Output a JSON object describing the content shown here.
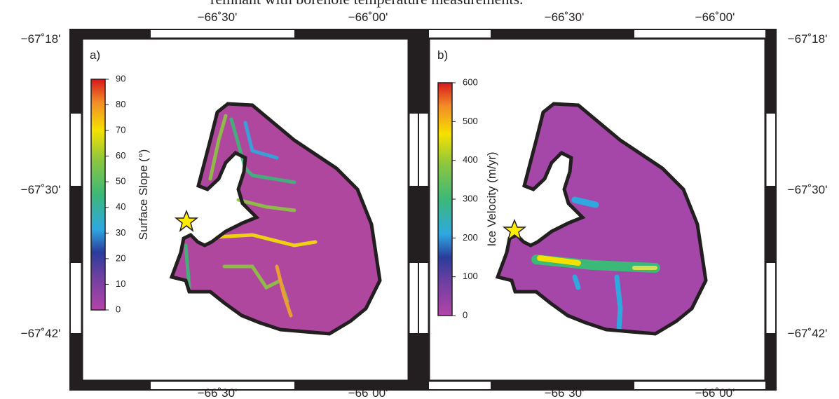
{
  "header_text": "remnant with borehole temperature measurements.",
  "panels": [
    {
      "label": "a)",
      "top_labels": [
        "−66˚30'",
        "−66˚00'"
      ],
      "bottom_labels": [
        "−66˚30'",
        "−66˚00'"
      ],
      "side_labels": [
        "−67˚18'",
        "−67˚30'",
        "−67˚42'"
      ],
      "colorbar": {
        "title": "Surface Slope (°)",
        "ticks": [
          0,
          10,
          20,
          30,
          40,
          50,
          60,
          70,
          80,
          90
        ]
      }
    },
    {
      "label": "b)",
      "top_labels": [
        "−66˚30'",
        "−66˚00'"
      ],
      "bottom_labels": [
        "−66˚30'",
        "−66˚00'"
      ],
      "side_labels": [
        "−67˚18'",
        "−67˚30'",
        "−67˚42'"
      ],
      "colorbar": {
        "title": "Ice Velocity (m/yr)",
        "ticks": [
          0,
          100,
          200,
          300,
          400,
          500,
          600
        ]
      }
    }
  ]
}
